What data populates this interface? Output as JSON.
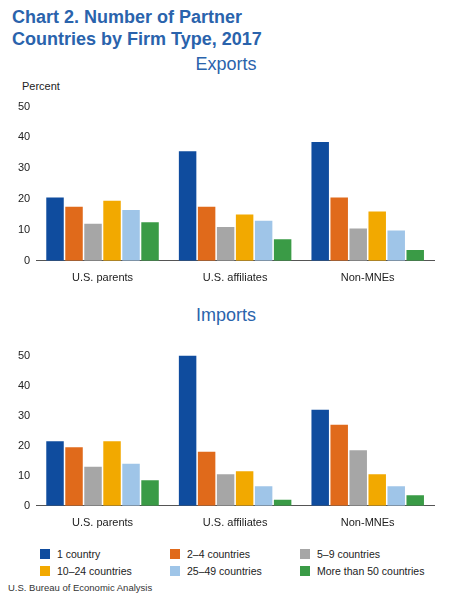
{
  "title": "Chart 2. Number of Partner Countries by Firm Type, 2017",
  "source": "U.S. Bureau of Economic Analysis",
  "chart_data": [
    {
      "type": "bar",
      "title": "Exports",
      "ylabel": "Percent",
      "categories": [
        "U.S. parents",
        "U.S. affiliates",
        "Non-MNEs"
      ],
      "series": [
        {
          "name": "1 country",
          "color": "#0f4c9e",
          "values": [
            20.5,
            35.5,
            38.5
          ]
        },
        {
          "name": "2–4 countries",
          "color": "#e06a1b",
          "values": [
            17.5,
            17.5,
            20.5
          ]
        },
        {
          "name": "5–9 countries",
          "color": "#a6a6a6",
          "values": [
            12,
            11,
            10.5
          ]
        },
        {
          "name": "10–24 countries",
          "color": "#f2a900",
          "values": [
            19.5,
            15,
            16
          ]
        },
        {
          "name": "25–49 countries",
          "color": "#9fc5e8",
          "values": [
            16.5,
            13,
            9.8
          ]
        },
        {
          "name": "More than 50 countries",
          "color": "#3a9b46",
          "values": [
            12.5,
            7,
            3.5
          ]
        }
      ],
      "ylim": [
        0,
        50
      ],
      "yticks": [
        0,
        10,
        20,
        30,
        40,
        50
      ],
      "grid": false
    },
    {
      "type": "bar",
      "title": "Imports",
      "categories": [
        "U.S. parents",
        "U.S. affiliates",
        "Non-MNEs"
      ],
      "series": [
        {
          "name": "1 country",
          "color": "#0f4c9e",
          "values": [
            21.5,
            50,
            32
          ]
        },
        {
          "name": "2–4 countries",
          "color": "#e06a1b",
          "values": [
            19.5,
            18,
            27
          ]
        },
        {
          "name": "5–9 countries",
          "color": "#a6a6a6",
          "values": [
            13,
            10.5,
            18.5
          ]
        },
        {
          "name": "10–24 countries",
          "color": "#f2a900",
          "values": [
            21.5,
            11.5,
            10.5
          ]
        },
        {
          "name": "25–49 countries",
          "color": "#9fc5e8",
          "values": [
            14,
            6.5,
            6.5
          ]
        },
        {
          "name": "More than 50 countries",
          "color": "#3a9b46",
          "values": [
            8.5,
            2,
            3.5
          ]
        }
      ],
      "ylim": [
        0,
        50
      ],
      "yticks": [
        0,
        10,
        20,
        30,
        40,
        50
      ],
      "grid": false,
      "legend": "bottom"
    }
  ]
}
